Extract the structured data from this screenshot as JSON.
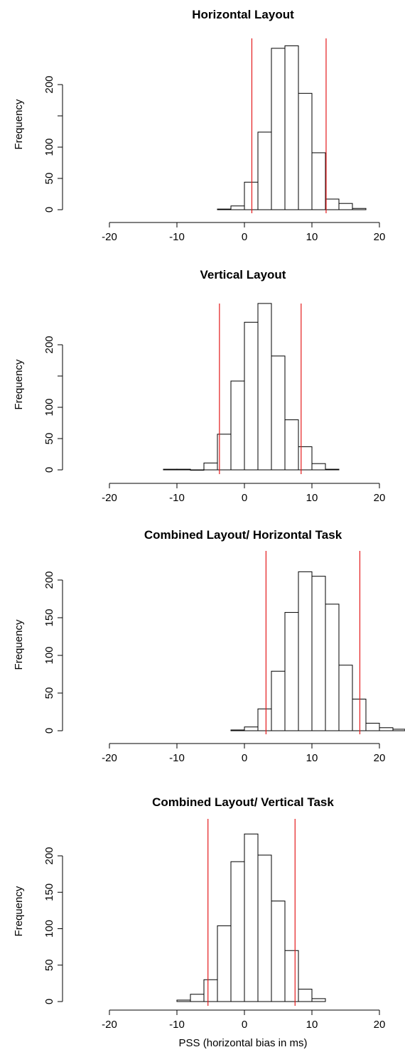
{
  "chart_data": [
    {
      "type": "bar",
      "title": "Horizontal Layout",
      "xlabel": "",
      "ylabel": "Frequency",
      "xlim": [
        -20,
        20
      ],
      "xticks": [
        -20,
        -10,
        0,
        10,
        20
      ],
      "ylim": [
        0,
        250
      ],
      "yticks": [
        0,
        50,
        100,
        200
      ],
      "bin_width": 2,
      "bins_start": [
        -4,
        -2,
        0,
        2,
        4,
        6,
        8,
        10,
        12,
        14,
        16
      ],
      "values": [
        1,
        6,
        44,
        124,
        258,
        262,
        186,
        91,
        17,
        10,
        2
      ],
      "vlines": [
        1.1,
        12.1
      ],
      "vline_color": "#e41a1c",
      "grid": false
    },
    {
      "type": "bar",
      "title": "Vertical Layout",
      "xlabel": "",
      "ylabel": "Frequency",
      "xlim": [
        -20,
        20
      ],
      "xticks": [
        -20,
        -10,
        0,
        10,
        20
      ],
      "ylim": [
        0,
        250
      ],
      "yticks": [
        0,
        50,
        100,
        200
      ],
      "bin_width": 2,
      "bins_start": [
        -12,
        -10,
        -8,
        -6,
        -4,
        -2,
        0,
        2,
        4,
        6,
        8,
        10,
        12
      ],
      "values": [
        1,
        1,
        0,
        11,
        57,
        142,
        236,
        266,
        182,
        80,
        37,
        10,
        1
      ],
      "vlines": [
        -3.7,
        8.4
      ],
      "vline_color": "#e41a1c",
      "grid": false
    },
    {
      "type": "bar",
      "title": "Combined Layout/ Horizontal Task",
      "xlabel": "",
      "ylabel": "Frequency",
      "xlim": [
        -20,
        20
      ],
      "xticks": [
        -20,
        -10,
        0,
        10,
        20
      ],
      "ylim": [
        0,
        220
      ],
      "yticks": [
        0,
        50,
        100,
        150,
        200
      ],
      "bin_width": 2,
      "bins_start": [
        -2,
        0,
        2,
        4,
        6,
        8,
        10,
        12,
        14,
        16,
        18,
        20,
        22
      ],
      "values": [
        1,
        5,
        29,
        79,
        157,
        211,
        205,
        168,
        87,
        42,
        10,
        4,
        2
      ],
      "vlines": [
        3.2,
        17.1
      ],
      "vline_color": "#e41a1c",
      "grid": false
    },
    {
      "type": "bar",
      "title": "Combined Layout/ Vertical Task",
      "xlabel": "PSS (horizontal bias in ms)",
      "ylabel": "Frequency",
      "xlim": [
        -20,
        20
      ],
      "xticks": [
        -20,
        -10,
        0,
        10,
        20
      ],
      "ylim": [
        0,
        240
      ],
      "yticks": [
        0,
        50,
        100,
        150,
        200
      ],
      "bin_width": 2,
      "bins_start": [
        -10,
        -8,
        -6,
        -4,
        -2,
        0,
        2,
        4,
        6,
        8,
        10
      ],
      "values": [
        2,
        10,
        30,
        104,
        192,
        230,
        201,
        138,
        70,
        17,
        4
      ],
      "vlines": [
        -5.4,
        7.5
      ],
      "vline_color": "#e41a1c",
      "grid": false
    }
  ]
}
